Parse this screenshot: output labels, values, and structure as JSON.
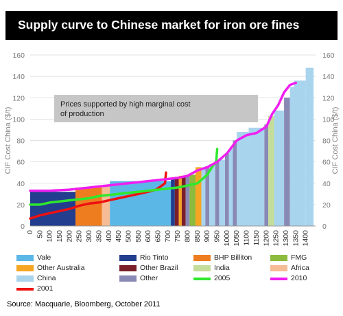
{
  "title": "Supply curve to Chinese market for iron ore fines",
  "source": "Source: Macquarie, Bloomberg, October 2011",
  "colors": {
    "Vale": "#5bb8e6",
    "Rio Tinto": "#233d8f",
    "BHP Billiton": "#ee7d20",
    "FMG": "#8cbb3e",
    "Other Australia": "#f6a623",
    "Other Brazil": "#7a1f2a",
    "India": "#c5dd9a",
    "Africa": "#f5bc95",
    "China": "#a8d4ee",
    "Other": "#8989b5",
    "2005": "#2ee82e",
    "2010": "#f01ef0",
    "2001": "#ee1111"
  },
  "chart_data": {
    "type": "area",
    "ylabel": "CIF Cost China ($/t)",
    "ylabel_right": "CIF Cost China ($/t)",
    "ylim": [
      0,
      160
    ],
    "yticks": [
      "0",
      "20",
      "40",
      "60",
      "80",
      "100",
      "120",
      "140",
      "160"
    ],
    "xlim": [
      0,
      1450
    ],
    "xticks": [
      "0",
      "50",
      "100",
      "150",
      "200",
      "250",
      "300",
      "350",
      "400",
      "450",
      "500",
      "550",
      "600",
      "650",
      "700",
      "750",
      "800",
      "850",
      "900",
      "950",
      "1000",
      "1050",
      "1100",
      "1150",
      "1200",
      "1250",
      "1300",
      "1350",
      "1400"
    ],
    "annotation": "Prices supported by high marginal cost of production",
    "blocks": [
      {
        "group": "Rio Tinto",
        "x0": 0,
        "x1": 230,
        "y": 32
      },
      {
        "group": "BHP Billiton",
        "x0": 230,
        "x1": 365,
        "y": 36
      },
      {
        "group": "Africa",
        "x0": 365,
        "x1": 405,
        "y": 38
      },
      {
        "group": "Vale",
        "x0": 405,
        "x1": 730,
        "y": 42
      },
      {
        "group": "Rio Tinto",
        "x0": 715,
        "x1": 735,
        "y": 44
      },
      {
        "group": "Other Brazil",
        "x0": 735,
        "x1": 755,
        "y": 46
      },
      {
        "group": "Other Australia",
        "x0": 755,
        "x1": 770,
        "y": 47
      },
      {
        "group": "Other Brazil",
        "x0": 770,
        "x1": 790,
        "y": 47
      },
      {
        "group": "Other",
        "x0": 790,
        "x1": 810,
        "y": 48
      },
      {
        "group": "FMG",
        "x0": 810,
        "x1": 840,
        "y": 48
      },
      {
        "group": "Other Australia",
        "x0": 840,
        "x1": 870,
        "y": 55
      },
      {
        "group": "China",
        "x0": 870,
        "x1": 890,
        "y": 55
      },
      {
        "group": "Other",
        "x0": 890,
        "x1": 910,
        "y": 56
      },
      {
        "group": "China",
        "x0": 910,
        "x1": 940,
        "y": 58
      },
      {
        "group": "Other",
        "x0": 940,
        "x1": 960,
        "y": 60
      },
      {
        "group": "China",
        "x0": 960,
        "x1": 990,
        "y": 62
      },
      {
        "group": "Other",
        "x0": 990,
        "x1": 1010,
        "y": 68
      },
      {
        "group": "China",
        "x0": 1010,
        "x1": 1030,
        "y": 72
      },
      {
        "group": "Other",
        "x0": 1030,
        "x1": 1050,
        "y": 80
      },
      {
        "group": "China",
        "x0": 1050,
        "x1": 1110,
        "y": 88
      },
      {
        "group": "China",
        "x0": 1110,
        "x1": 1190,
        "y": 92
      },
      {
        "group": "Other",
        "x0": 1190,
        "x1": 1210,
        "y": 95
      },
      {
        "group": "India",
        "x0": 1210,
        "x1": 1240,
        "y": 103
      },
      {
        "group": "China",
        "x0": 1240,
        "x1": 1290,
        "y": 108
      },
      {
        "group": "Other",
        "x0": 1290,
        "x1": 1320,
        "y": 120
      },
      {
        "group": "China",
        "x0": 1320,
        "x1": 1340,
        "y": 130
      },
      {
        "group": "China",
        "x0": 1340,
        "x1": 1400,
        "y": 136
      },
      {
        "group": "China",
        "x0": 1400,
        "x1": 1440,
        "y": 148
      }
    ],
    "series": [
      {
        "name": "2001",
        "points": [
          [
            0,
            7
          ],
          [
            50,
            10
          ],
          [
            100,
            12
          ],
          [
            150,
            14
          ],
          [
            200,
            16
          ],
          [
            250,
            19
          ],
          [
            300,
            21
          ],
          [
            350,
            22
          ],
          [
            400,
            24
          ],
          [
            450,
            26
          ],
          [
            500,
            28
          ],
          [
            550,
            30
          ],
          [
            600,
            32
          ],
          [
            640,
            34
          ],
          [
            670,
            38
          ],
          [
            685,
            40
          ],
          [
            690,
            50
          ]
        ]
      },
      {
        "name": "2005",
        "points": [
          [
            0,
            20
          ],
          [
            50,
            20
          ],
          [
            100,
            22
          ],
          [
            150,
            23
          ],
          [
            200,
            24
          ],
          [
            250,
            25
          ],
          [
            300,
            26
          ],
          [
            350,
            28
          ],
          [
            400,
            29
          ],
          [
            450,
            30
          ],
          [
            500,
            31
          ],
          [
            550,
            32
          ],
          [
            600,
            33
          ],
          [
            650,
            34
          ],
          [
            700,
            35
          ],
          [
            750,
            36
          ],
          [
            800,
            38
          ],
          [
            850,
            40
          ],
          [
            900,
            48
          ],
          [
            930,
            57
          ],
          [
            945,
            60
          ],
          [
            950,
            72
          ]
        ]
      },
      {
        "name": "2010",
        "points": [
          [
            0,
            33
          ],
          [
            100,
            33
          ],
          [
            200,
            34
          ],
          [
            250,
            35
          ],
          [
            300,
            36
          ],
          [
            350,
            37
          ],
          [
            400,
            38
          ],
          [
            450,
            39
          ],
          [
            500,
            40
          ],
          [
            550,
            41
          ],
          [
            600,
            42
          ],
          [
            650,
            43
          ],
          [
            700,
            44
          ],
          [
            750,
            45
          ],
          [
            800,
            47
          ],
          [
            850,
            52
          ],
          [
            900,
            55
          ],
          [
            950,
            60
          ],
          [
            1000,
            68
          ],
          [
            1050,
            80
          ],
          [
            1100,
            85
          ],
          [
            1150,
            87
          ],
          [
            1200,
            93
          ],
          [
            1230,
            105
          ],
          [
            1260,
            113
          ],
          [
            1290,
            125
          ],
          [
            1320,
            132
          ],
          [
            1350,
            134
          ]
        ]
      }
    ]
  },
  "legend": [
    {
      "label": "Vale",
      "type": "box",
      "color_key": "Vale"
    },
    {
      "label": "Rio Tinto",
      "type": "box",
      "color_key": "Rio Tinto"
    },
    {
      "label": "BHP Billiton",
      "type": "box",
      "color_key": "BHP Billiton"
    },
    {
      "label": "FMG",
      "type": "box",
      "color_key": "FMG"
    },
    {
      "label": "Other Australia",
      "type": "box",
      "color_key": "Other Australia"
    },
    {
      "label": "Other Brazil",
      "type": "box",
      "color_key": "Other Brazil"
    },
    {
      "label": "India",
      "type": "box",
      "color_key": "India"
    },
    {
      "label": "Africa",
      "type": "box",
      "color_key": "Africa"
    },
    {
      "label": "China",
      "type": "box",
      "color_key": "China"
    },
    {
      "label": "Other",
      "type": "box",
      "color_key": "Other"
    },
    {
      "label": "2005",
      "type": "line",
      "color_key": "2005"
    },
    {
      "label": "2010",
      "type": "line",
      "color_key": "2010"
    },
    {
      "label": "2001",
      "type": "line",
      "color_key": "2001"
    }
  ]
}
